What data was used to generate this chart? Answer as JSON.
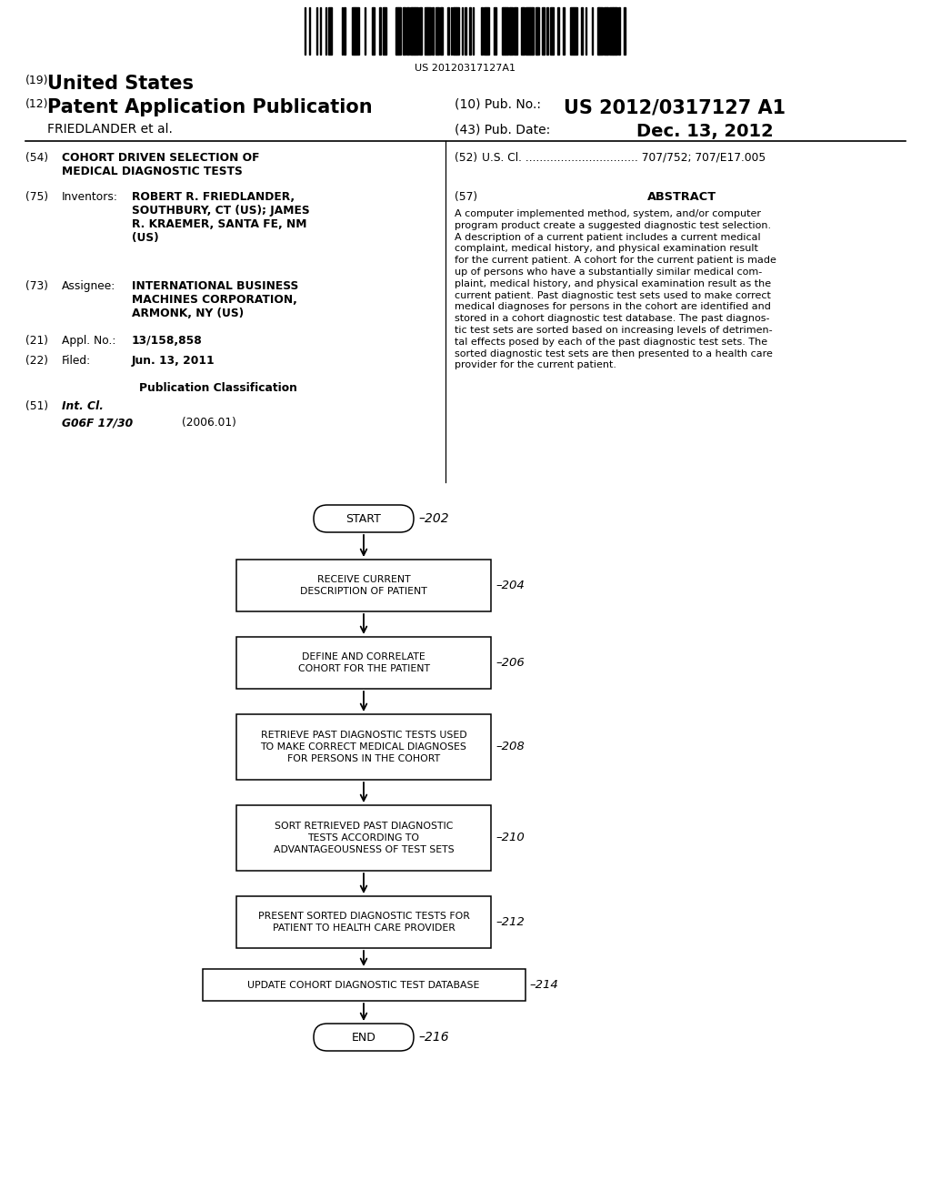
{
  "background_color": "#ffffff",
  "barcode_text": "US 20120317127A1",
  "header": {
    "country_num": "(19)",
    "country": "United States",
    "type_num": "(12)",
    "type": "Patent Application Publication",
    "pub_num_label": "(10) Pub. No.:",
    "pub_num": "US 2012/0317127 A1",
    "inventor": "FRIEDLANDER et al.",
    "pub_date_label": "(43) Pub. Date:",
    "pub_date": "Dec. 13, 2012"
  },
  "fields": {
    "title_num": "(54)",
    "title_label": "COHORT DRIVEN SELECTION OF\nMEDICAL DIAGNOSTIC TESTS",
    "us_cl_num": "(52)",
    "us_cl_label": "U.S. Cl. ................................ 707/752; 707/E17.005",
    "inventors_num": "(75)",
    "inventors_label": "Inventors:",
    "inventors_value": "ROBERT R. FRIEDLANDER,\nSOUTHBURY, CT (US); JAMES\nR. KRAEMER, SANTA FE, NM\n(US)",
    "abstract_num": "(57)",
    "abstract_title": "ABSTRACT",
    "abstract_text": "A computer implemented method, system, and/or computer\nprogram product create a suggested diagnostic test selection.\nA description of a current patient includes a current medical\ncomplaint, medical history, and physical examination result\nfor the current patient. A cohort for the current patient is made\nup of persons who have a substantially similar medical com-\nplaint, medical history, and physical examination result as the\ncurrent patient. Past diagnostic test sets used to make correct\nmedical diagnoses for persons in the cohort are identified and\nstored in a cohort diagnostic test database. The past diagnos-\ntic test sets are sorted based on increasing levels of detrimen-\ntal effects posed by each of the past diagnostic test sets. The\nsorted diagnostic test sets are then presented to a health care\nprovider for the current patient.",
    "assignee_num": "(73)",
    "assignee_label": "Assignee:",
    "assignee_value": "INTERNATIONAL BUSINESS\nMACHINES CORPORATION,\nARMONK, NY (US)",
    "appl_num": "(21)",
    "appl_label": "Appl. No.:",
    "appl_value": "13/158,858",
    "filed_num": "(22)",
    "filed_label": "Filed:",
    "filed_value": "Jun. 13, 2011",
    "pub_class_label": "Publication Classification",
    "int_cl_num": "(51)",
    "int_cl_label": "Int. Cl.",
    "int_cl_value": "G06F 17/30",
    "int_cl_date": "(2006.01)"
  },
  "flowchart": {
    "start_label": "START",
    "start_num": "202",
    "boxes": [
      {
        "label": "RECEIVE CURRENT\nDESCRIPTION OF PATIENT",
        "num": "204"
      },
      {
        "label": "DEFINE AND CORRELATE\nCOHORT FOR THE PATIENT",
        "num": "206"
      },
      {
        "label": "RETRIEVE PAST DIAGNOSTIC TESTS USED\nTO MAKE CORRECT MEDICAL DIAGNOSES\nFOR PERSONS IN THE COHORT",
        "num": "208"
      },
      {
        "label": "SORT RETRIEVED PAST DIAGNOSTIC\nTESTS ACCORDING TO\nADVANTAGEOUSNESS OF TEST SETS",
        "num": "210"
      },
      {
        "label": "PRESENT SORTED DIAGNOSTIC TESTS FOR\nPATIENT TO HEALTH CARE PROVIDER",
        "num": "212"
      },
      {
        "label": "UPDATE COHORT DIAGNOSTIC TEST DATABASE",
        "num": "214"
      }
    ],
    "end_label": "END",
    "end_num": "216"
  }
}
